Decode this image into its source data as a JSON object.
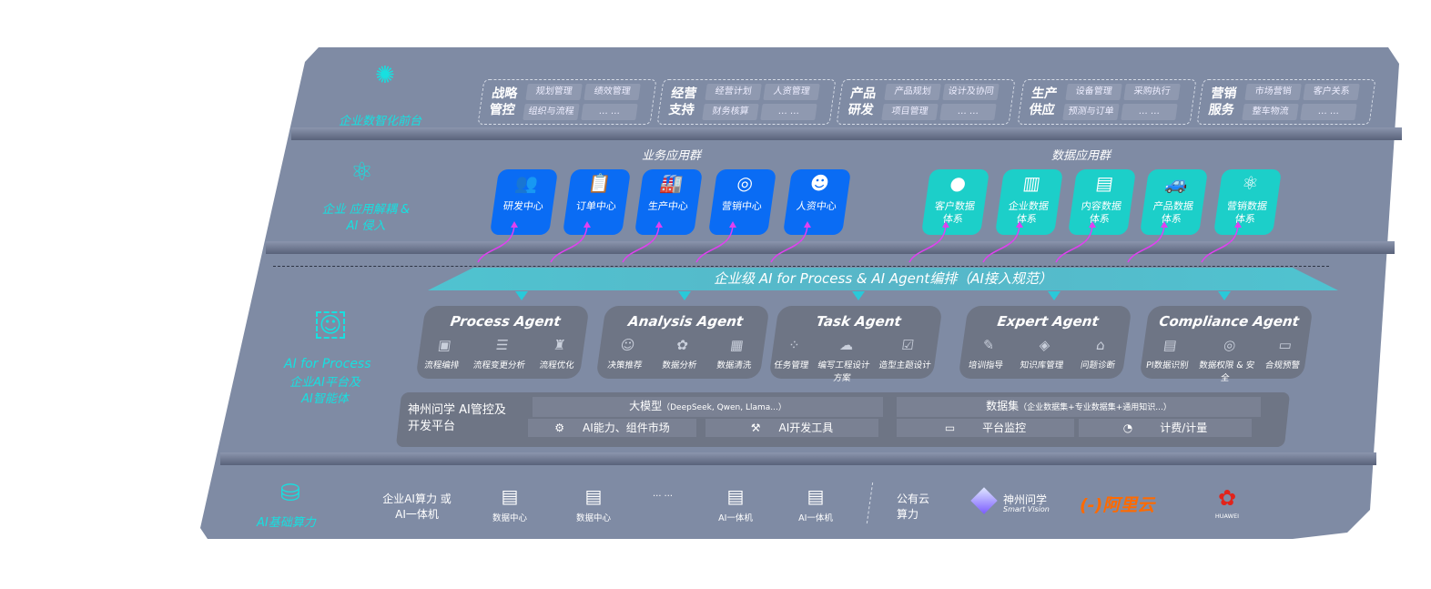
{
  "layers": {
    "front": {
      "label": "企业数智化前台",
      "icon": "brain-icon"
    },
    "apps": {
      "label": "企业 应用解耦 & AI 侵入",
      "icon": "molecule-icon"
    },
    "ai": {
      "label_en": "AI for Process",
      "label_cn": "企业AI平台及 AI智能体",
      "icon": "face-scan-icon"
    },
    "compute": {
      "label": "AI基础算力",
      "icon": "database-icon"
    }
  },
  "groups": [
    {
      "title": "战略 管控",
      "chips": [
        "规划管理",
        "绩效管理",
        "组织与流程",
        "… …"
      ]
    },
    {
      "title": "经营 支持",
      "chips": [
        "经营计划",
        "人资管理",
        "财务核算",
        "… …"
      ]
    },
    {
      "title": "产品 研发",
      "chips": [
        "产品规划",
        "设计及协同",
        "项目管理",
        "… …"
      ]
    },
    {
      "title": "生产 供应",
      "chips": [
        "设备管理",
        "采购执行",
        "预测与订单",
        "… …"
      ]
    },
    {
      "title": "营销 服务",
      "chips": [
        "市场营销",
        "客户关系",
        "整车物流",
        "… …"
      ]
    }
  ],
  "business_apps": {
    "title": "业务应用群",
    "items": [
      {
        "label": "研发中心",
        "icon": "users-icon"
      },
      {
        "label": "订单中心",
        "icon": "clipboard-icon"
      },
      {
        "label": "生产中心",
        "icon": "factory-icon"
      },
      {
        "label": "营销中心",
        "icon": "target-icon"
      },
      {
        "label": "人资中心",
        "icon": "person-icon"
      }
    ]
  },
  "data_apps": {
    "title": "数据应用群",
    "items": [
      {
        "label": "客户数据 体系",
        "icon": "user-icon"
      },
      {
        "label": "企业数据 体系",
        "icon": "building-icon"
      },
      {
        "label": "内容数据 体系",
        "icon": "books-icon"
      },
      {
        "label": "产品数据 体系",
        "icon": "car-icon"
      },
      {
        "label": "营销数据 体系",
        "icon": "atom-icon"
      }
    ]
  },
  "orchestration": "企业级 AI for Process & AI Agent编排（AI接入规范）",
  "agents": [
    {
      "name": "Process Agent",
      "items": [
        "流程编排",
        "流程变更分析",
        "流程优化"
      ]
    },
    {
      "name": "Analysis Agent",
      "items": [
        "决策推荐",
        "数据分析",
        "数据清洗"
      ]
    },
    {
      "name": "Task Agent",
      "items": [
        "任务管理",
        "编写工程设计方案",
        "造型主题设计"
      ]
    },
    {
      "name": "Expert Agent",
      "items": [
        "培训指导",
        "知识库管理",
        "问题诊断"
      ]
    },
    {
      "name": "Compliance Agent",
      "items": [
        "PI数据识别",
        "数据权限 & 安全",
        "合规预警"
      ]
    }
  ],
  "platform": {
    "title": "神州问学 AI管控及开发平台",
    "model": "大模型",
    "model_note": "（DeepSeek, Qwen, Llama...）",
    "dataset": "数据集",
    "dataset_note": "（企业数据集+专业数据集+通用知识...）",
    "market": "AI能力、组件市场",
    "devtools": "AI开发工具",
    "monitor": "平台监控",
    "billing": "计费/计量"
  },
  "compute": {
    "enterprise_label": "企业AI算力 或AI一体机",
    "servers": [
      "数据中心",
      "数据中心",
      "… …",
      "AI一体机",
      "AI一体机"
    ],
    "public_label": "公有云 算力",
    "vendors": {
      "smartvision_cn": "神州问学",
      "smartvision_en": "Smart Vision",
      "aliyun": "阿里云",
      "huawei": "HUAWEI"
    }
  },
  "colors": {
    "panel": "#7f8ba4",
    "cyan": "#17e0e0",
    "blue_app": "#0a6cf4",
    "teal_app": "#1ccfc9",
    "agent": "#6e7585",
    "arrow": "#e040f0",
    "aliyun": "#ff6a00",
    "huawei": "#e2231a"
  }
}
